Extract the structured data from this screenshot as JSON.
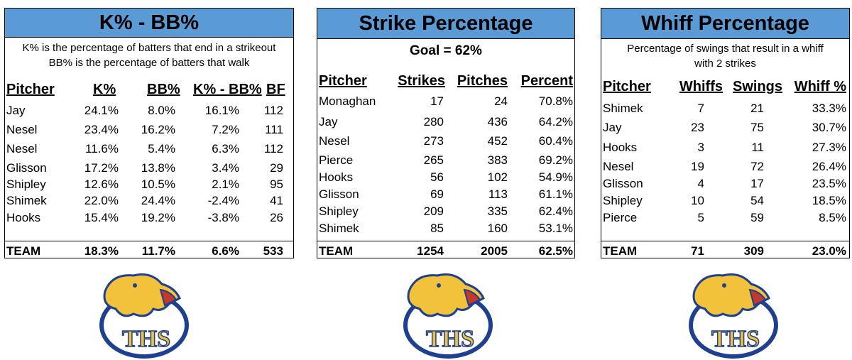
{
  "panels": [
    {
      "title": "K% - BB%",
      "desc": [
        "K% is the percentage of batters that end in a strikeout",
        "BB% is the percentage of batters that walk"
      ],
      "headers": [
        "Pitcher",
        "K%",
        "BB%",
        "K% - BB%",
        "BF"
      ],
      "rows": [
        [
          "Jay",
          "24.1%",
          "8.0%",
          "16.1%",
          "112"
        ],
        [
          "Nesel",
          "23.4%",
          "16.2%",
          "7.2%",
          "111"
        ],
        [
          "Nesel",
          "11.6%",
          "5.4%",
          "6.3%",
          "112"
        ],
        [
          "Glisson",
          "17.2%",
          "13.8%",
          "3.4%",
          "29"
        ],
        [
          "Shipley",
          "12.6%",
          "10.5%",
          "2.1%",
          "95"
        ],
        [
          "Shimek",
          "22.0%",
          "24.4%",
          "-2.4%",
          "41"
        ],
        [
          "Hooks",
          "15.4%",
          "19.2%",
          "-3.8%",
          "26"
        ]
      ],
      "team": [
        "TEAM",
        "18.3%",
        "11.7%",
        "6.6%",
        "533"
      ]
    },
    {
      "title": "Strike Percentage",
      "goal": "Goal = 62%",
      "headers": [
        "Pitcher",
        "Strikes",
        "Pitches",
        "Percent"
      ],
      "rows": [
        [
          "Monaghan",
          "17",
          "24",
          "70.8%"
        ],
        [
          "Jay",
          "280",
          "436",
          "64.2%"
        ],
        [
          "Nesel",
          "273",
          "452",
          "60.4%"
        ],
        [
          "Pierce",
          "265",
          "383",
          "69.2%"
        ],
        [
          "Hooks",
          "56",
          "102",
          "54.9%"
        ],
        [
          "Glisson",
          "69",
          "113",
          "61.1%"
        ],
        [
          "Shipley",
          "209",
          "335",
          "62.4%"
        ],
        [
          "Shimek",
          "85",
          "160",
          "53.1%"
        ]
      ],
      "team": [
        "TEAM",
        "1254",
        "2005",
        "62.5%"
      ]
    },
    {
      "title": "Whiff Percentage",
      "desc": [
        "Percentage of swings that result in a whiff",
        "with 2 strikes"
      ],
      "headers": [
        "Pitcher",
        "Whiffs",
        "Swings",
        "Whiff %"
      ],
      "rows": [
        [
          "Shimek",
          "7",
          "21",
          "33.3%"
        ],
        [
          "Jay",
          "23",
          "75",
          "30.7%"
        ],
        [
          "Hooks",
          "3",
          "11",
          "27.3%"
        ],
        [
          "Nesel",
          "19",
          "72",
          "26.4%"
        ],
        [
          "Glisson",
          "4",
          "17",
          "23.5%"
        ],
        [
          "Shipley",
          "10",
          "54",
          "18.5%"
        ],
        [
          "Pierce",
          "5",
          "59",
          "8.5%"
        ]
      ],
      "team": [
        "TEAM",
        "71",
        "309",
        "23.0%"
      ]
    }
  ],
  "logo_text": "THS",
  "colors": {
    "header_blue": "#5b9bd5",
    "logo_gold": "#f2c23a",
    "logo_navy": "#1f3f8f"
  }
}
